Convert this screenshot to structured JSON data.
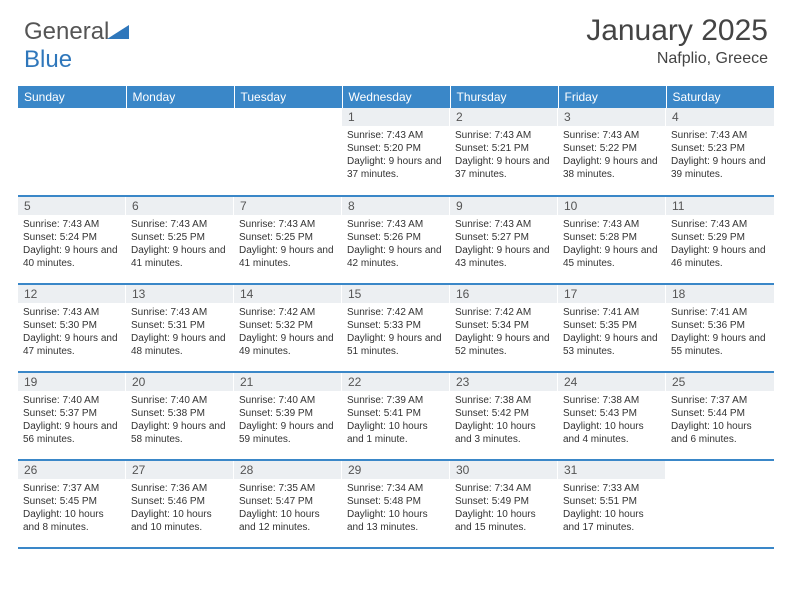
{
  "brand": {
    "part1": "General",
    "part2": "Blue"
  },
  "title": "January 2025",
  "location": "Nafplio, Greece",
  "colors": {
    "header_bg": "#3a87c8",
    "header_text": "#ffffff",
    "daynum_bg": "#eceff2",
    "row_border": "#3a87c8",
    "logo_blue": "#2f77bb"
  },
  "days_of_week": [
    "Sunday",
    "Monday",
    "Tuesday",
    "Wednesday",
    "Thursday",
    "Friday",
    "Saturday"
  ],
  "weeks": [
    [
      {
        "n": "",
        "sr": "",
        "ss": "",
        "dl": ""
      },
      {
        "n": "",
        "sr": "",
        "ss": "",
        "dl": ""
      },
      {
        "n": "",
        "sr": "",
        "ss": "",
        "dl": ""
      },
      {
        "n": "1",
        "sr": "Sunrise: 7:43 AM",
        "ss": "Sunset: 5:20 PM",
        "dl": "Daylight: 9 hours and 37 minutes."
      },
      {
        "n": "2",
        "sr": "Sunrise: 7:43 AM",
        "ss": "Sunset: 5:21 PM",
        "dl": "Daylight: 9 hours and 37 minutes."
      },
      {
        "n": "3",
        "sr": "Sunrise: 7:43 AM",
        "ss": "Sunset: 5:22 PM",
        "dl": "Daylight: 9 hours and 38 minutes."
      },
      {
        "n": "4",
        "sr": "Sunrise: 7:43 AM",
        "ss": "Sunset: 5:23 PM",
        "dl": "Daylight: 9 hours and 39 minutes."
      }
    ],
    [
      {
        "n": "5",
        "sr": "Sunrise: 7:43 AM",
        "ss": "Sunset: 5:24 PM",
        "dl": "Daylight: 9 hours and 40 minutes."
      },
      {
        "n": "6",
        "sr": "Sunrise: 7:43 AM",
        "ss": "Sunset: 5:25 PM",
        "dl": "Daylight: 9 hours and 41 minutes."
      },
      {
        "n": "7",
        "sr": "Sunrise: 7:43 AM",
        "ss": "Sunset: 5:25 PM",
        "dl": "Daylight: 9 hours and 41 minutes."
      },
      {
        "n": "8",
        "sr": "Sunrise: 7:43 AM",
        "ss": "Sunset: 5:26 PM",
        "dl": "Daylight: 9 hours and 42 minutes."
      },
      {
        "n": "9",
        "sr": "Sunrise: 7:43 AM",
        "ss": "Sunset: 5:27 PM",
        "dl": "Daylight: 9 hours and 43 minutes."
      },
      {
        "n": "10",
        "sr": "Sunrise: 7:43 AM",
        "ss": "Sunset: 5:28 PM",
        "dl": "Daylight: 9 hours and 45 minutes."
      },
      {
        "n": "11",
        "sr": "Sunrise: 7:43 AM",
        "ss": "Sunset: 5:29 PM",
        "dl": "Daylight: 9 hours and 46 minutes."
      }
    ],
    [
      {
        "n": "12",
        "sr": "Sunrise: 7:43 AM",
        "ss": "Sunset: 5:30 PM",
        "dl": "Daylight: 9 hours and 47 minutes."
      },
      {
        "n": "13",
        "sr": "Sunrise: 7:43 AM",
        "ss": "Sunset: 5:31 PM",
        "dl": "Daylight: 9 hours and 48 minutes."
      },
      {
        "n": "14",
        "sr": "Sunrise: 7:42 AM",
        "ss": "Sunset: 5:32 PM",
        "dl": "Daylight: 9 hours and 49 minutes."
      },
      {
        "n": "15",
        "sr": "Sunrise: 7:42 AM",
        "ss": "Sunset: 5:33 PM",
        "dl": "Daylight: 9 hours and 51 minutes."
      },
      {
        "n": "16",
        "sr": "Sunrise: 7:42 AM",
        "ss": "Sunset: 5:34 PM",
        "dl": "Daylight: 9 hours and 52 minutes."
      },
      {
        "n": "17",
        "sr": "Sunrise: 7:41 AM",
        "ss": "Sunset: 5:35 PM",
        "dl": "Daylight: 9 hours and 53 minutes."
      },
      {
        "n": "18",
        "sr": "Sunrise: 7:41 AM",
        "ss": "Sunset: 5:36 PM",
        "dl": "Daylight: 9 hours and 55 minutes."
      }
    ],
    [
      {
        "n": "19",
        "sr": "Sunrise: 7:40 AM",
        "ss": "Sunset: 5:37 PM",
        "dl": "Daylight: 9 hours and 56 minutes."
      },
      {
        "n": "20",
        "sr": "Sunrise: 7:40 AM",
        "ss": "Sunset: 5:38 PM",
        "dl": "Daylight: 9 hours and 58 minutes."
      },
      {
        "n": "21",
        "sr": "Sunrise: 7:40 AM",
        "ss": "Sunset: 5:39 PM",
        "dl": "Daylight: 9 hours and 59 minutes."
      },
      {
        "n": "22",
        "sr": "Sunrise: 7:39 AM",
        "ss": "Sunset: 5:41 PM",
        "dl": "Daylight: 10 hours and 1 minute."
      },
      {
        "n": "23",
        "sr": "Sunrise: 7:38 AM",
        "ss": "Sunset: 5:42 PM",
        "dl": "Daylight: 10 hours and 3 minutes."
      },
      {
        "n": "24",
        "sr": "Sunrise: 7:38 AM",
        "ss": "Sunset: 5:43 PM",
        "dl": "Daylight: 10 hours and 4 minutes."
      },
      {
        "n": "25",
        "sr": "Sunrise: 7:37 AM",
        "ss": "Sunset: 5:44 PM",
        "dl": "Daylight: 10 hours and 6 minutes."
      }
    ],
    [
      {
        "n": "26",
        "sr": "Sunrise: 7:37 AM",
        "ss": "Sunset: 5:45 PM",
        "dl": "Daylight: 10 hours and 8 minutes."
      },
      {
        "n": "27",
        "sr": "Sunrise: 7:36 AM",
        "ss": "Sunset: 5:46 PM",
        "dl": "Daylight: 10 hours and 10 minutes."
      },
      {
        "n": "28",
        "sr": "Sunrise: 7:35 AM",
        "ss": "Sunset: 5:47 PM",
        "dl": "Daylight: 10 hours and 12 minutes."
      },
      {
        "n": "29",
        "sr": "Sunrise: 7:34 AM",
        "ss": "Sunset: 5:48 PM",
        "dl": "Daylight: 10 hours and 13 minutes."
      },
      {
        "n": "30",
        "sr": "Sunrise: 7:34 AM",
        "ss": "Sunset: 5:49 PM",
        "dl": "Daylight: 10 hours and 15 minutes."
      },
      {
        "n": "31",
        "sr": "Sunrise: 7:33 AM",
        "ss": "Sunset: 5:51 PM",
        "dl": "Daylight: 10 hours and 17 minutes."
      },
      {
        "n": "",
        "sr": "",
        "ss": "",
        "dl": ""
      }
    ]
  ]
}
